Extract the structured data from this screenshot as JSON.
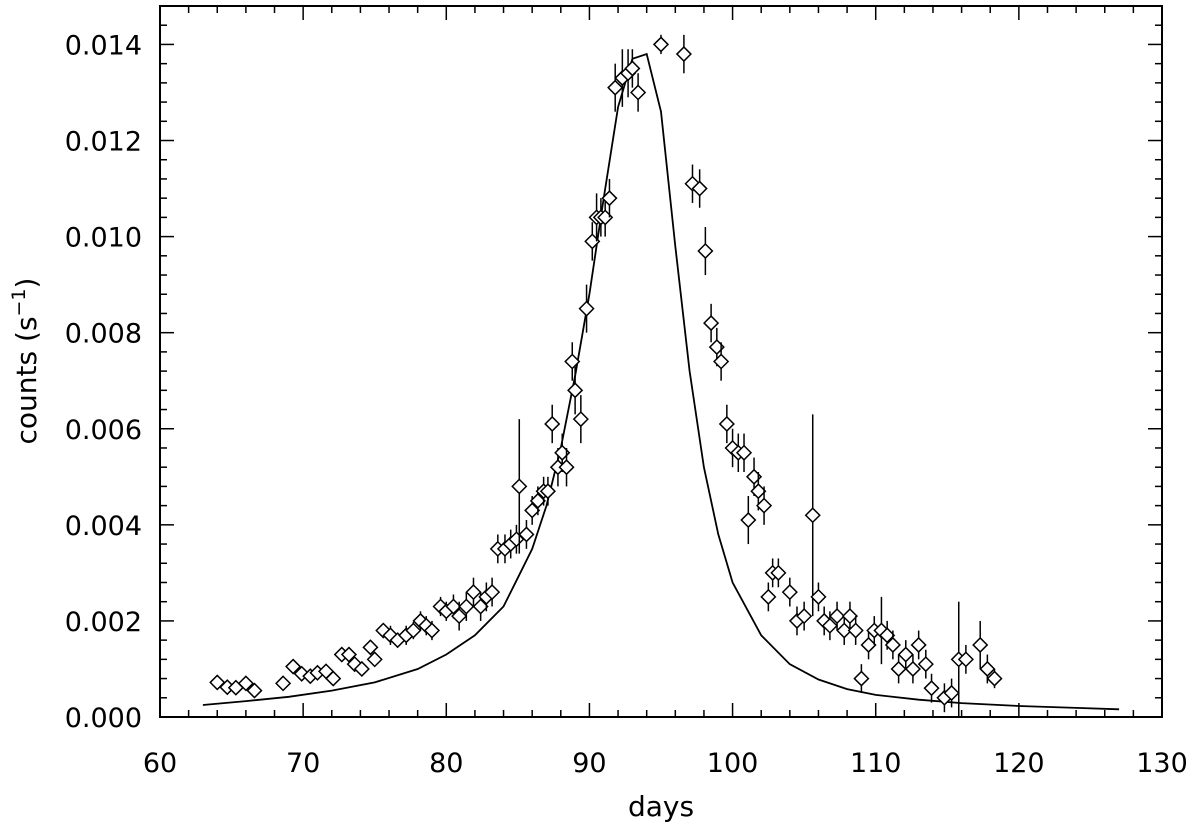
{
  "chart_data": {
    "type": "scatter",
    "title": "",
    "xlabel": "days",
    "ylabel_main": "counts (s",
    "ylabel_sup": "−1",
    "ylabel_end": ")",
    "xlim": [
      60,
      130
    ],
    "ylim": [
      0.0,
      0.0148
    ],
    "xticks": [
      60,
      70,
      80,
      90,
      100,
      110,
      120,
      130
    ],
    "xtick_labels": [
      "60",
      "70",
      "80",
      "90",
      "100",
      "110",
      "120",
      "130"
    ],
    "yticks": [
      0.0,
      0.002,
      0.004,
      0.006,
      0.008,
      0.01,
      0.012,
      0.014
    ],
    "ytick_labels": [
      "0.000",
      "0.002",
      "0.004",
      "0.006",
      "0.008",
      "0.010",
      "0.012",
      "0.014"
    ],
    "grid": false,
    "legend": false,
    "series": [
      {
        "kind": "points-with-errorbars",
        "marker": "diamond",
        "points": [
          [
            64.0,
            0.00072,
            6e-05
          ],
          [
            64.7,
            0.00062,
            6e-05
          ],
          [
            65.3,
            0.00061,
            6e-05
          ],
          [
            66.0,
            0.0007,
            7e-05
          ],
          [
            66.6,
            0.00055,
            6e-05
          ],
          [
            68.6,
            0.0007,
            7e-05
          ],
          [
            69.3,
            0.00105,
            9e-05
          ],
          [
            69.9,
            0.0009,
            0.0001
          ],
          [
            70.5,
            0.00085,
            0.0001
          ],
          [
            71.0,
            0.00092,
            0.0001
          ],
          [
            71.6,
            0.00095,
            0.0001
          ],
          [
            72.1,
            0.0008,
            0.0001
          ],
          [
            72.7,
            0.0013,
            0.00012
          ],
          [
            73.2,
            0.0013,
            0.00015
          ],
          [
            73.6,
            0.0011,
            0.00012
          ],
          [
            74.1,
            0.001,
            0.0001
          ],
          [
            74.7,
            0.00145,
            0.00015
          ],
          [
            75.0,
            0.0012,
            0.00015
          ],
          [
            75.6,
            0.0018,
            0.00015
          ],
          [
            76.1,
            0.0017,
            0.0002
          ],
          [
            76.6,
            0.0016,
            0.00015
          ],
          [
            77.2,
            0.0017,
            0.0002
          ],
          [
            77.7,
            0.0018,
            0.00018
          ],
          [
            78.2,
            0.002,
            0.0002
          ],
          [
            78.6,
            0.0019,
            0.0002
          ],
          [
            79.0,
            0.0018,
            0.0002
          ],
          [
            79.6,
            0.0023,
            0.0002
          ],
          [
            80.0,
            0.0022,
            0.0002
          ],
          [
            80.5,
            0.0023,
            0.00025
          ],
          [
            80.9,
            0.0021,
            0.0003
          ],
          [
            81.4,
            0.0023,
            0.0003
          ],
          [
            81.9,
            0.0026,
            0.0003
          ],
          [
            82.4,
            0.0023,
            0.0003
          ],
          [
            82.8,
            0.0025,
            0.0003
          ],
          [
            83.2,
            0.0026,
            0.0003
          ],
          [
            83.6,
            0.0035,
            0.0003
          ],
          [
            84.1,
            0.0035,
            0.0003
          ],
          [
            84.5,
            0.0036,
            0.0003
          ],
          [
            84.9,
            0.0037,
            0.0003
          ],
          [
            85.1,
            0.0048,
            0.0014
          ],
          [
            85.6,
            0.0038,
            0.0003
          ],
          [
            86.0,
            0.0043,
            0.0003
          ],
          [
            86.4,
            0.0045,
            0.0003
          ],
          [
            86.8,
            0.0047,
            0.0003
          ],
          [
            87.1,
            0.0047,
            0.0003
          ],
          [
            87.4,
            0.0061,
            0.0004
          ],
          [
            87.8,
            0.0052,
            0.0004
          ],
          [
            88.1,
            0.0055,
            0.0004
          ],
          [
            88.4,
            0.0052,
            0.0004
          ],
          [
            88.8,
            0.0074,
            0.0004
          ],
          [
            89.0,
            0.0068,
            0.0005
          ],
          [
            89.4,
            0.0062,
            0.0005
          ],
          [
            89.8,
            0.0085,
            0.0005
          ],
          [
            90.2,
            0.0099,
            0.0004
          ],
          [
            90.5,
            0.0104,
            0.0005
          ],
          [
            90.8,
            0.0104,
            0.0004
          ],
          [
            91.1,
            0.0104,
            0.0004
          ],
          [
            91.4,
            0.0108,
            0.0004
          ],
          [
            91.8,
            0.0131,
            0.0005
          ],
          [
            92.3,
            0.0133,
            0.0006
          ],
          [
            92.7,
            0.0134,
            0.0005
          ],
          [
            93.0,
            0.0135,
            0.0004
          ],
          [
            93.4,
            0.013,
            0.0004
          ],
          [
            95.0,
            0.014,
            0.0002
          ],
          [
            96.6,
            0.0138,
            0.0004
          ],
          [
            97.2,
            0.0111,
            0.0004
          ],
          [
            97.7,
            0.011,
            0.0004
          ],
          [
            98.1,
            0.0097,
            0.0005
          ],
          [
            98.5,
            0.0082,
            0.0004
          ],
          [
            98.9,
            0.0077,
            0.0004
          ],
          [
            99.2,
            0.0074,
            0.0004
          ],
          [
            99.6,
            0.0061,
            0.0004
          ],
          [
            100.0,
            0.0056,
            0.0004
          ],
          [
            100.4,
            0.0055,
            0.0004
          ],
          [
            100.8,
            0.0055,
            0.0004
          ],
          [
            101.1,
            0.0041,
            0.0005
          ],
          [
            101.5,
            0.005,
            0.0004
          ],
          [
            101.8,
            0.0047,
            0.0004
          ],
          [
            102.2,
            0.0044,
            0.0004
          ],
          [
            102.5,
            0.0025,
            0.0003
          ],
          [
            102.8,
            0.003,
            0.0003
          ],
          [
            103.2,
            0.003,
            0.0003
          ],
          [
            104.0,
            0.0026,
            0.0003
          ],
          [
            104.5,
            0.002,
            0.0003
          ],
          [
            105.0,
            0.0021,
            0.0003
          ],
          [
            105.6,
            0.0042,
            0.0021
          ],
          [
            106.0,
            0.0025,
            0.0003
          ],
          [
            106.4,
            0.002,
            0.0003
          ],
          [
            106.8,
            0.0019,
            0.0003
          ],
          [
            107.3,
            0.0021,
            0.0003
          ],
          [
            107.8,
            0.0018,
            0.0003
          ],
          [
            108.2,
            0.0021,
            0.0003
          ],
          [
            108.6,
            0.0018,
            0.0003
          ],
          [
            109.0,
            0.0008,
            0.0003
          ],
          [
            109.5,
            0.0015,
            0.0003
          ],
          [
            109.9,
            0.0018,
            0.0003
          ],
          [
            110.4,
            0.0018,
            0.0007
          ],
          [
            110.8,
            0.0017,
            0.0003
          ],
          [
            111.2,
            0.0015,
            0.0003
          ],
          [
            111.6,
            0.001,
            0.0003
          ],
          [
            112.1,
            0.0013,
            0.0003
          ],
          [
            112.6,
            0.001,
            0.0003
          ],
          [
            113.0,
            0.0015,
            0.0003
          ],
          [
            113.5,
            0.0011,
            0.0003
          ],
          [
            113.9,
            0.0006,
            0.0003
          ],
          [
            114.8,
            0.0004,
            0.0003
          ],
          [
            115.3,
            0.0005,
            0.0003
          ],
          [
            115.8,
            0.0012,
            0.0012
          ],
          [
            116.3,
            0.0012,
            0.0003
          ],
          [
            117.3,
            0.0015,
            0.0005
          ],
          [
            117.8,
            0.001,
            0.0003
          ],
          [
            118.3,
            0.0008,
            0.0002
          ]
        ]
      },
      {
        "kind": "line",
        "points": [
          [
            63.0,
            0.00025
          ],
          [
            66.0,
            0.00033
          ],
          [
            69.0,
            0.00042
          ],
          [
            72.0,
            0.00055
          ],
          [
            75.0,
            0.00072
          ],
          [
            78.0,
            0.001
          ],
          [
            80.0,
            0.0013
          ],
          [
            82.0,
            0.0017
          ],
          [
            84.0,
            0.0023
          ],
          [
            85.0,
            0.0029
          ],
          [
            86.0,
            0.0035
          ],
          [
            87.0,
            0.0044
          ],
          [
            88.0,
            0.0056
          ],
          [
            89.0,
            0.0071
          ],
          [
            90.0,
            0.0088
          ],
          [
            91.0,
            0.0108
          ],
          [
            92.0,
            0.0127
          ],
          [
            93.0,
            0.0137
          ],
          [
            94.0,
            0.0138
          ],
          [
            95.0,
            0.0126
          ],
          [
            96.0,
            0.0098
          ],
          [
            97.0,
            0.0072
          ],
          [
            98.0,
            0.0052
          ],
          [
            99.0,
            0.0038
          ],
          [
            100.0,
            0.0028
          ],
          [
            102.0,
            0.0017
          ],
          [
            104.0,
            0.0011
          ],
          [
            106.0,
            0.00078
          ],
          [
            108.0,
            0.00058
          ],
          [
            110.0,
            0.00046
          ],
          [
            113.0,
            0.00036
          ],
          [
            116.0,
            0.00029
          ],
          [
            120.0,
            0.00023
          ],
          [
            124.0,
            0.00019
          ],
          [
            127.0,
            0.00016
          ]
        ]
      }
    ]
  }
}
